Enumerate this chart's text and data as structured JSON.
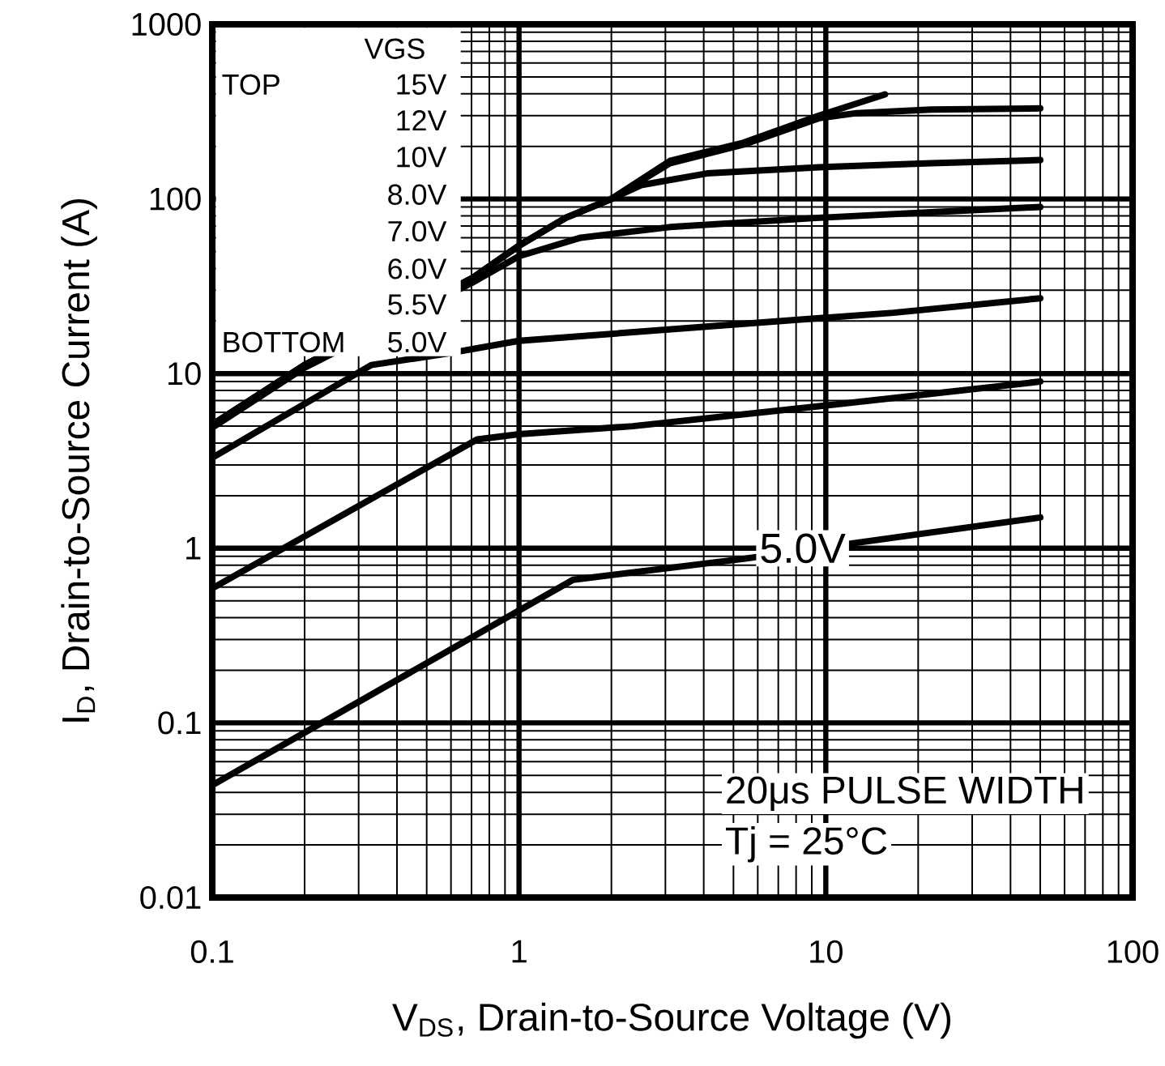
{
  "chart_data": {
    "type": "line",
    "xlabel": "V$_{DS}$, Drain-to-Source Voltage (V)",
    "ylabel": "I$_{D}$, Drain-to-Source Current (A)",
    "log": "xy",
    "grid": true,
    "marker": "none",
    "line_style": "solid",
    "xlim": [
      0.1,
      100
    ],
    "ylim": [
      0.01,
      1000
    ],
    "xticks": [
      0.1,
      1,
      10,
      100
    ],
    "yticks": [
      0.01,
      0.1,
      1,
      10,
      100,
      1000
    ],
    "series": [
      {
        "color": "#000000",
        "x": [
          0.1,
          0.2,
          0.35,
          0.7,
          1,
          1.42,
          2,
          3.1,
          5.4,
          9.5,
          15.6
        ],
        "values": [
          5.1,
          11.2,
          null,
          35,
          54,
          78,
          100,
          165,
          210,
          300,
          397
        ]
      },
      {
        "color": "#000000",
        "x": [
          0.1,
          0.2,
          0.35,
          0.7,
          1,
          1.42,
          2,
          3.1,
          5.4,
          9.5,
          12.6,
          22,
          50
        ],
        "values": [
          5.1,
          11.2,
          null,
          35,
          54,
          78,
          100,
          160,
          205,
          290,
          310,
          325,
          330
        ]
      },
      {
        "color": "#000000",
        "x": [
          0.1,
          0.2,
          0.35,
          0.7,
          1,
          1.42,
          2,
          2.5,
          4.1,
          9.5,
          22,
          50
        ],
        "values": [
          5.1,
          11.2,
          null,
          35,
          54,
          78,
          100,
          120,
          140,
          152,
          160,
          167
        ]
      },
      {
        "color": "#000000",
        "x": [
          0.1,
          0.2,
          0.35,
          0.7,
          1,
          1.59,
          3.1,
          9.5,
          22,
          50
        ],
        "values": [
          4.9,
          10.8,
          null,
          33,
          47,
          60,
          69,
          78,
          84,
          90
        ]
      },
      {
        "color": "#000000",
        "x": [
          0.1,
          0.33,
          0.58,
          1,
          5.4,
          16.6,
          50
        ],
        "values": [
          3.3,
          11.2,
          13,
          15.4,
          19.3,
          22.3,
          27
        ]
      },
      {
        "color": "#000000",
        "x": [
          0.1,
          0.73,
          1,
          2.35,
          9.5,
          50
        ],
        "values": [
          0.59,
          4.2,
          4.5,
          5.0,
          6.5,
          9.0
        ]
      },
      {
        "color": "#000000",
        "x": [
          0.1,
          1.5,
          5.4,
          11.9,
          22,
          50
        ],
        "values": [
          0.044,
          0.66,
          0.87,
          1.06,
          1.23,
          1.5
        ]
      }
    ],
    "annotations": [
      "VGS",
      "TOP",
      "15V",
      "12V",
      "10V",
      "8.0V",
      "7.0V",
      "6.0V",
      "5.5V",
      "BOTTOM",
      "5.0V",
      {
        "text": "5.0V",
        "x": 8.4,
        "y": 1
      },
      "20μs PULSE WIDTH",
      "Tj = 25°C"
    ]
  }
}
